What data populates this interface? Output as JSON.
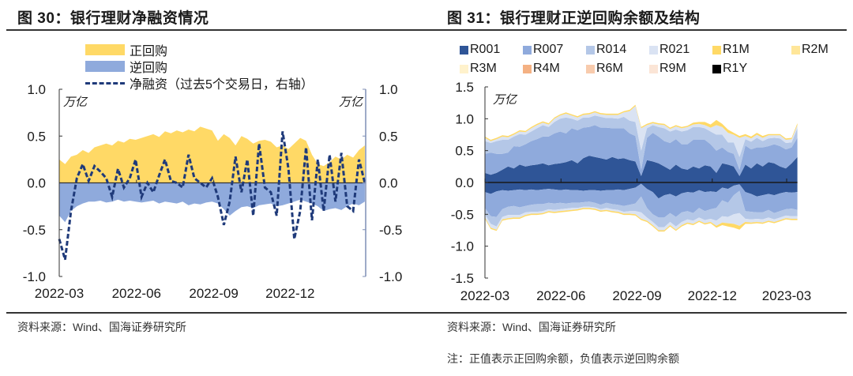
{
  "left": {
    "title": "图 30：银行理财净融资情况",
    "source": "资料来源：Wind、国海证券研究所",
    "unit_left": "万亿",
    "unit_right": "万亿",
    "legend": [
      {
        "label": "正回购",
        "color": "#FFD966",
        "kind": "area"
      },
      {
        "label": "逆回购",
        "color": "#8FAADC",
        "kind": "area"
      },
      {
        "label": "净融资（过去5个交易日，右轴）",
        "color": "#1F3A7A",
        "kind": "dash"
      }
    ]
  },
  "right": {
    "title": "图 31：银行理财正逆回购余额及结构",
    "source": "资料来源：Wind、国海证券研究所",
    "note": "注：正值表示正回购余额，负值表示逆回购余额",
    "unit": "万亿",
    "legend": [
      {
        "label": "R001",
        "color": "#2F5597"
      },
      {
        "label": "R007",
        "color": "#8FAADC"
      },
      {
        "label": "R014",
        "color": "#B4C7E7"
      },
      {
        "label": "R021",
        "color": "#DAE3F3"
      },
      {
        "label": "R1M",
        "color": "#FFD966"
      },
      {
        "label": "R2M",
        "color": "#FFE699"
      },
      {
        "label": "R3M",
        "color": "#FFF2CC"
      },
      {
        "label": "R4M",
        "color": "#F4B183"
      },
      {
        "label": "R6M",
        "color": "#F8CBAD"
      },
      {
        "label": "R9M",
        "color": "#FBE5D6"
      },
      {
        "label": "R1Y",
        "color": "#000000"
      }
    ]
  },
  "chart_data": [
    {
      "type": "area",
      "title": "图 30：银行理财净融资情况",
      "xlabel": "",
      "ylabel": "万亿",
      "y2label": "万亿",
      "ylim": [
        -1.0,
        1.0
      ],
      "y2lim": [
        -1.0,
        1.0
      ],
      "yticks": [
        -1.0,
        -0.5,
        0.0,
        0.5,
        1.0
      ],
      "yticklabels": [
        "-1.0",
        "-0.5",
        "0.0",
        "0.5",
        "1.0"
      ],
      "xticks": [
        "2022-03",
        "2022-06",
        "2022-09",
        "2022-12"
      ],
      "x": [
        "2022-03-01",
        "2022-03-08",
        "2022-03-15",
        "2022-03-22",
        "2022-03-29",
        "2022-04-05",
        "2022-04-12",
        "2022-04-19",
        "2022-04-26",
        "2022-05-03",
        "2022-05-10",
        "2022-05-17",
        "2022-05-24",
        "2022-05-31",
        "2022-06-07",
        "2022-06-14",
        "2022-06-21",
        "2022-06-28",
        "2022-07-05",
        "2022-07-12",
        "2022-07-19",
        "2022-07-26",
        "2022-08-02",
        "2022-08-09",
        "2022-08-16",
        "2022-08-23",
        "2022-08-30",
        "2022-09-06",
        "2022-09-13",
        "2022-09-20",
        "2022-09-27",
        "2022-10-04",
        "2022-10-11",
        "2022-10-18",
        "2022-10-25",
        "2022-11-01",
        "2022-11-08",
        "2022-11-15",
        "2022-11-22",
        "2022-11-29",
        "2022-12-06",
        "2022-12-13",
        "2022-12-20",
        "2022-12-27",
        "2023-01-03",
        "2023-01-10",
        "2023-01-17",
        "2023-01-24",
        "2023-01-31",
        "2023-02-07",
        "2023-02-14",
        "2023-02-21",
        "2023-02-28"
      ],
      "series": [
        {
          "name": "正回购",
          "axis": "left",
          "kind": "area",
          "values": [
            0.25,
            0.2,
            0.28,
            0.3,
            0.35,
            0.32,
            0.38,
            0.4,
            0.42,
            0.4,
            0.45,
            0.43,
            0.47,
            0.46,
            0.48,
            0.5,
            0.52,
            0.49,
            0.55,
            0.53,
            0.56,
            0.54,
            0.57,
            0.55,
            0.6,
            0.58,
            0.56,
            0.45,
            0.52,
            0.48,
            0.4,
            0.5,
            0.47,
            0.42,
            0.45,
            0.46,
            0.44,
            0.38,
            0.4,
            0.36,
            0.42,
            0.48,
            0.45,
            0.3,
            0.2,
            0.18,
            0.22,
            0.28,
            0.25,
            0.3,
            0.27,
            0.35,
            0.4
          ]
        },
        {
          "name": "逆回购",
          "axis": "left",
          "kind": "area",
          "values": [
            -0.35,
            -0.42,
            -0.3,
            -0.25,
            -0.22,
            -0.2,
            -0.2,
            -0.19,
            -0.21,
            -0.2,
            -0.18,
            -0.2,
            -0.19,
            -0.2,
            -0.21,
            -0.2,
            -0.19,
            -0.22,
            -0.2,
            -0.21,
            -0.22,
            -0.2,
            -0.24,
            -0.22,
            -0.23,
            -0.21,
            -0.2,
            -0.22,
            -0.28,
            -0.35,
            -0.3,
            -0.26,
            -0.25,
            -0.27,
            -0.24,
            -0.23,
            -0.22,
            -0.25,
            -0.24,
            -0.22,
            -0.2,
            -0.18,
            -0.2,
            -0.22,
            -0.25,
            -0.3,
            -0.28,
            -0.27,
            -0.29,
            -0.25,
            -0.22,
            -0.24,
            -0.2
          ]
        },
        {
          "name": "净融资（过去5个交易日，右轴）",
          "axis": "right",
          "kind": "dashed-line",
          "values": [
            -0.6,
            -0.82,
            -0.3,
            0.05,
            0.2,
            0.02,
            0.18,
            0.12,
            0.05,
            -0.15,
            0.15,
            -0.05,
            0.05,
            0.25,
            -0.15,
            0.0,
            -0.1,
            0.08,
            0.25,
            0.02,
            0.0,
            -0.05,
            0.3,
            0.05,
            0.0,
            -0.05,
            0.05,
            -0.15,
            -0.45,
            -0.2,
            0.28,
            -0.1,
            0.25,
            -0.35,
            0.42,
            -0.05,
            -0.1,
            -0.35,
            0.55,
            0.15,
            -0.6,
            -0.3,
            0.38,
            -0.4,
            0.25,
            -0.3,
            0.3,
            -0.2,
            0.32,
            -0.25,
            -0.3,
            0.25,
            0.0
          ]
        }
      ]
    },
    {
      "type": "area",
      "stacked": true,
      "title": "图 31：银行理财正逆回购余额及结构",
      "xlabel": "",
      "ylabel": "万亿",
      "ylim": [
        -1.5,
        1.5
      ],
      "yticks": [
        -1.5,
        -1.0,
        -0.5,
        0.0,
        0.5,
        1.0,
        1.5
      ],
      "yticklabels": [
        "-1.5",
        "-1.0",
        "-0.5",
        "0.0",
        "0.5",
        "1.0",
        "1.5"
      ],
      "xticks": [
        "2022-03",
        "2022-06",
        "2022-09",
        "2022-12",
        "2023-03"
      ],
      "legend_position": "top",
      "x": [
        "2022-03-01",
        "2022-03-08",
        "2022-03-15",
        "2022-03-22",
        "2022-03-29",
        "2022-04-05",
        "2022-04-12",
        "2022-04-19",
        "2022-04-26",
        "2022-05-03",
        "2022-05-10",
        "2022-05-17",
        "2022-05-24",
        "2022-05-31",
        "2022-06-07",
        "2022-06-14",
        "2022-06-21",
        "2022-06-28",
        "2022-07-05",
        "2022-07-12",
        "2022-07-19",
        "2022-07-26",
        "2022-08-02",
        "2022-08-09",
        "2022-08-16",
        "2022-08-23",
        "2022-08-30",
        "2022-09-06",
        "2022-09-13",
        "2022-09-20",
        "2022-09-27",
        "2022-10-04",
        "2022-10-11",
        "2022-10-18",
        "2022-10-25",
        "2022-11-01",
        "2022-11-08",
        "2022-11-15",
        "2022-11-22",
        "2022-11-29",
        "2022-12-06",
        "2022-12-13",
        "2022-12-20",
        "2022-12-27",
        "2023-01-03",
        "2023-01-10",
        "2023-01-17",
        "2023-01-24",
        "2023-01-31",
        "2023-02-07",
        "2023-02-14",
        "2023-02-21",
        "2023-02-28",
        "2023-03-07",
        "2023-03-14"
      ],
      "positive_series": [
        {
          "name": "R001",
          "values": [
            0.15,
            0.12,
            0.15,
            0.2,
            0.25,
            0.22,
            0.28,
            0.25,
            0.27,
            0.28,
            0.3,
            0.27,
            0.29,
            0.3,
            0.32,
            0.35,
            0.3,
            0.38,
            0.42,
            0.4,
            0.38,
            0.36,
            0.4,
            0.37,
            0.38,
            0.35,
            0.33,
            0.1,
            0.35,
            0.33,
            0.3,
            0.25,
            0.2,
            0.28,
            0.22,
            0.2,
            0.25,
            0.22,
            0.27,
            0.25,
            0.15,
            0.3,
            0.28,
            0.25,
            0.1,
            0.28,
            0.22,
            0.3,
            0.25,
            0.32,
            0.3,
            0.25,
            0.22,
            0.3,
            0.4
          ]
        },
        {
          "name": "R007",
          "values": [
            0.3,
            0.35,
            0.3,
            0.25,
            0.22,
            0.35,
            0.28,
            0.35,
            0.38,
            0.4,
            0.42,
            0.45,
            0.48,
            0.5,
            0.45,
            0.5,
            0.52,
            0.48,
            0.45,
            0.5,
            0.48,
            0.5,
            0.45,
            0.48,
            0.47,
            0.42,
            0.4,
            0.1,
            0.35,
            0.45,
            0.42,
            0.4,
            0.42,
            0.4,
            0.38,
            0.4,
            0.42,
            0.45,
            0.4,
            0.35,
            0.35,
            0.25,
            0.2,
            0.2,
            0.1,
            0.3,
            0.3,
            0.25,
            0.3,
            0.25,
            0.3,
            0.32,
            0.3,
            0.25,
            0.3
          ]
        },
        {
          "name": "R014",
          "values": [
            0.2,
            0.15,
            0.2,
            0.22,
            0.2,
            0.15,
            0.2,
            0.15,
            0.15,
            0.17,
            0.18,
            0.15,
            0.18,
            0.2,
            0.25,
            0.15,
            0.15,
            0.16,
            0.15,
            0.15,
            0.17,
            0.15,
            0.16,
            0.15,
            0.18,
            0.2,
            0.22,
            0.3,
            0.15,
            0.12,
            0.15,
            0.2,
            0.18,
            0.15,
            0.2,
            0.22,
            0.2,
            0.2,
            0.18,
            0.2,
            0.25,
            0.2,
            0.15,
            0.18,
            0.2,
            0.1,
            0.12,
            0.15,
            0.1,
            0.12,
            0.1,
            0.12,
            0.1,
            0.08,
            0.15
          ]
        },
        {
          "name": "R021",
          "values": [
            0.05,
            0.03,
            0.03,
            0.05,
            0.04,
            0.03,
            0.04,
            0.04,
            0.05,
            0.05,
            0.04,
            0.04,
            0.05,
            0.05,
            0.06,
            0.05,
            0.05,
            0.04,
            0.05,
            0.05,
            0.04,
            0.05,
            0.05,
            0.06,
            0.07,
            0.15,
            0.25,
            0.35,
            0.05,
            0.03,
            0.04,
            0.05,
            0.04,
            0.05,
            0.05,
            0.05,
            0.04,
            0.05,
            0.05,
            0.06,
            0.15,
            0.12,
            0.15,
            0.12,
            0.3,
            0.05,
            0.05,
            0.05,
            0.05,
            0.05,
            0.04,
            0.05,
            0.05,
            0.05,
            0.05
          ]
        },
        {
          "name": "R1M",
          "values": [
            0.02,
            0.02,
            0.02,
            0.02,
            0.02,
            0.02,
            0.02,
            0.02,
            0.02,
            0.02,
            0.02,
            0.02,
            0.02,
            0.02,
            0.02,
            0.02,
            0.02,
            0.02,
            0.02,
            0.02,
            0.02,
            0.02,
            0.02,
            0.02,
            0.02,
            0.02,
            0.02,
            0.02,
            0.02,
            0.02,
            0.02,
            0.02,
            0.02,
            0.02,
            0.02,
            0.02,
            0.03,
            0.03,
            0.05,
            0.05,
            0.08,
            0.05,
            0.05,
            0.03,
            0.03,
            0.03,
            0.03,
            0.03,
            0.03,
            0.02,
            0.02,
            0.02,
            0.02,
            0.02,
            0.03
          ]
        }
      ],
      "negative_series": [
        {
          "name": "R001",
          "values": [
            -0.15,
            -0.18,
            -0.14,
            -0.12,
            -0.13,
            -0.12,
            -0.11,
            -0.12,
            -0.11,
            -0.12,
            -0.11,
            -0.1,
            -0.11,
            -0.12,
            -0.11,
            -0.12,
            -0.12,
            -0.13,
            -0.12,
            -0.12,
            -0.13,
            -0.12,
            -0.12,
            -0.11,
            -0.12,
            -0.1,
            -0.08,
            -0.02,
            -0.1,
            -0.15,
            -0.25,
            -0.2,
            -0.18,
            -0.22,
            -0.17,
            -0.15,
            -0.16,
            -0.12,
            -0.15,
            -0.14,
            -0.15,
            -0.08,
            -0.1,
            -0.05,
            -0.03,
            -0.15,
            -0.18,
            -0.22,
            -0.2,
            -0.18,
            -0.2,
            -0.17,
            -0.15,
            -0.16,
            -0.15
          ]
        },
        {
          "name": "R007",
          "values": [
            -0.25,
            -0.35,
            -0.4,
            -0.3,
            -0.25,
            -0.25,
            -0.28,
            -0.25,
            -0.24,
            -0.22,
            -0.23,
            -0.22,
            -0.22,
            -0.2,
            -0.22,
            -0.2,
            -0.2,
            -0.18,
            -0.18,
            -0.2,
            -0.22,
            -0.2,
            -0.22,
            -0.24,
            -0.25,
            -0.25,
            -0.25,
            -0.2,
            -0.3,
            -0.35,
            -0.3,
            -0.35,
            -0.3,
            -0.32,
            -0.3,
            -0.3,
            -0.32,
            -0.28,
            -0.3,
            -0.28,
            -0.25,
            -0.2,
            -0.22,
            -0.15,
            -0.1,
            -0.3,
            -0.28,
            -0.25,
            -0.27,
            -0.25,
            -0.28,
            -0.28,
            -0.27,
            -0.25,
            -0.28
          ]
        },
        {
          "name": "R014",
          "values": [
            -0.1,
            -0.12,
            -0.15,
            -0.12,
            -0.13,
            -0.14,
            -0.12,
            -0.1,
            -0.11,
            -0.12,
            -0.11,
            -0.1,
            -0.1,
            -0.1,
            -0.08,
            -0.08,
            -0.08,
            -0.07,
            -0.08,
            -0.07,
            -0.07,
            -0.08,
            -0.08,
            -0.08,
            -0.09,
            -0.1,
            -0.12,
            -0.25,
            -0.15,
            -0.12,
            -0.15,
            -0.15,
            -0.14,
            -0.15,
            -0.15,
            -0.13,
            -0.12,
            -0.15,
            -0.14,
            -0.15,
            -0.2,
            -0.25,
            -0.22,
            -0.3,
            -0.35,
            -0.12,
            -0.12,
            -0.1,
            -0.11,
            -0.12,
            -0.1,
            -0.1,
            -0.1,
            -0.12,
            -0.1
          ]
        },
        {
          "name": "R021",
          "values": [
            -0.05,
            -0.06,
            -0.05,
            -0.04,
            -0.05,
            -0.04,
            -0.04,
            -0.04,
            -0.03,
            -0.03,
            -0.03,
            -0.03,
            -0.03,
            -0.03,
            -0.03,
            -0.03,
            -0.02,
            -0.02,
            -0.02,
            -0.02,
            -0.02,
            -0.03,
            -0.03,
            -0.03,
            -0.03,
            -0.04,
            -0.05,
            -0.1,
            -0.05,
            -0.05,
            -0.05,
            -0.05,
            -0.05,
            -0.05,
            -0.05,
            -0.05,
            -0.05,
            -0.05,
            -0.05,
            -0.05,
            -0.08,
            -0.1,
            -0.1,
            -0.15,
            -0.2,
            -0.05,
            -0.05,
            -0.05,
            -0.05,
            -0.05,
            -0.04,
            -0.04,
            -0.04,
            -0.04,
            -0.04
          ]
        },
        {
          "name": "R1M",
          "values": [
            -0.02,
            -0.02,
            -0.02,
            -0.02,
            -0.02,
            -0.02,
            -0.02,
            -0.02,
            -0.02,
            -0.02,
            -0.02,
            -0.02,
            -0.02,
            -0.02,
            -0.02,
            -0.02,
            -0.02,
            -0.02,
            -0.02,
            -0.02,
            -0.02,
            -0.02,
            -0.02,
            -0.02,
            -0.02,
            -0.02,
            -0.02,
            -0.02,
            -0.02,
            -0.02,
            -0.02,
            -0.02,
            -0.02,
            -0.02,
            -0.02,
            -0.02,
            -0.02,
            -0.02,
            -0.02,
            -0.02,
            -0.03,
            -0.04,
            -0.05,
            -0.06,
            -0.06,
            -0.03,
            -0.02,
            -0.02,
            -0.02,
            -0.02,
            -0.02,
            -0.02,
            -0.02,
            -0.02,
            -0.02
          ]
        }
      ]
    }
  ]
}
